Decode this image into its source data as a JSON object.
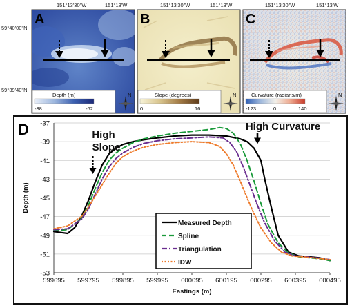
{
  "maps": {
    "top_coords": [
      "151°13'30\"W",
      "151°13'W"
    ],
    "left_coords": [
      "59°40'00\"N",
      "59°39'40\"N"
    ],
    "north_label": "N",
    "panels": [
      {
        "letter": "A",
        "legend_title": "Depth (m)",
        "ticks": [
          "-38",
          "-62"
        ],
        "ramp": [
          "#e8eef8",
          "#9db7de",
          "#3b5fb0",
          "#1c2a78"
        ]
      },
      {
        "letter": "B",
        "legend_title": "Slope (degrees)",
        "ticks": [
          "0",
          "16"
        ],
        "ramp": [
          "#f7f3d8",
          "#d8c48d",
          "#a27a45",
          "#5e3b1a"
        ]
      },
      {
        "letter": "C",
        "legend_title": "Curvature (radians/m)",
        "ticks": [
          "-123",
          "0",
          "140"
        ],
        "ramp": [
          "#2f5fb4",
          "#9fb8dc",
          "#f3f1ea",
          "#eea98f",
          "#c83a2a"
        ]
      }
    ]
  },
  "chart_data": {
    "type": "line",
    "panel_letter": "D",
    "xlabel": "Eastings (m)",
    "ylabel": "Depth (m)",
    "xlim": [
      599695,
      600495
    ],
    "ylim": [
      -53,
      -37
    ],
    "xticks": [
      599695,
      599795,
      599895,
      599995,
      600095,
      600195,
      600295,
      600395,
      600495
    ],
    "yticks": [
      -37,
      -39,
      -41,
      -43,
      -45,
      -47,
      -49,
      -51,
      -53
    ],
    "grid": true,
    "legend_position": "bottom-center",
    "annotations": [
      {
        "text": "High Slope",
        "lines": [
          "High",
          "Slope"
        ],
        "x": 599808,
        "y": -42.6
      },
      {
        "text": "High Curvature",
        "lines": [
          "High Curvature"
        ],
        "x": 600285,
        "y": -39.4
      }
    ],
    "series": [
      {
        "name": "Measured Depth",
        "color": "#000000",
        "dash": "solid",
        "x": [
          599695,
          599715,
          599735,
          599755,
          599775,
          599795,
          599815,
          599835,
          599855,
          599875,
          599895,
          599925,
          599955,
          599995,
          600045,
          600095,
          600145,
          600195,
          600235,
          600255,
          600275,
          600295,
          600305,
          600325,
          600345,
          600375,
          600405,
          600435,
          600465,
          600495
        ],
        "y": [
          -48.6,
          -48.7,
          -48.8,
          -48.2,
          -47.0,
          -45.3,
          -43.3,
          -41.5,
          -40.3,
          -39.7,
          -39.3,
          -39.0,
          -38.8,
          -38.6,
          -38.4,
          -38.3,
          -38.3,
          -38.4,
          -38.7,
          -39.0,
          -39.7,
          -41.0,
          -42.8,
          -46.0,
          -49.0,
          -50.8,
          -51.2,
          -51.3,
          -51.4,
          -51.7
        ]
      },
      {
        "name": "Spline",
        "color": "#1a9a3a",
        "dash": "dashed",
        "x": [
          599695,
          599735,
          599775,
          599795,
          599815,
          599835,
          599855,
          599875,
          599895,
          599925,
          599955,
          599995,
          600045,
          600095,
          600145,
          600175,
          600195,
          600215,
          600235,
          600255,
          600275,
          600295,
          600315,
          600345,
          600375,
          600405,
          600435,
          600465,
          600495
        ],
        "y": [
          -48.5,
          -48.4,
          -47.2,
          -45.8,
          -44.0,
          -42.3,
          -41.0,
          -40.2,
          -39.7,
          -39.1,
          -38.7,
          -38.4,
          -38.1,
          -37.9,
          -37.7,
          -37.5,
          -37.6,
          -38.1,
          -39.2,
          -41.0,
          -43.2,
          -45.6,
          -47.8,
          -49.8,
          -50.9,
          -51.3,
          -51.4,
          -51.5,
          -51.7
        ]
      },
      {
        "name": "Triangulation",
        "color": "#6a2d8f",
        "dash": "dashdot",
        "x": [
          599695,
          599735,
          599775,
          599795,
          599815,
          599835,
          599855,
          599875,
          599895,
          599925,
          599955,
          599995,
          600045,
          600095,
          600145,
          600185,
          600205,
          600225,
          600245,
          600265,
          600285,
          600305,
          600335,
          600365,
          600395,
          600425,
          600455,
          600495
        ],
        "y": [
          -48.4,
          -48.3,
          -47.3,
          -46.2,
          -44.6,
          -43.0,
          -41.7,
          -40.8,
          -40.2,
          -39.6,
          -39.2,
          -38.9,
          -38.7,
          -38.6,
          -38.5,
          -38.6,
          -39.1,
          -40.1,
          -41.8,
          -43.8,
          -45.8,
          -47.6,
          -49.6,
          -50.8,
          -51.2,
          -51.3,
          -51.4,
          -51.6
        ]
      },
      {
        "name": "IDW",
        "color": "#ee7a2a",
        "dash": "dotted",
        "x": [
          599695,
          599735,
          599775,
          599795,
          599815,
          599835,
          599855,
          599875,
          599895,
          599925,
          599955,
          599995,
          600045,
          600095,
          600145,
          600175,
          600195,
          600215,
          600235,
          600255,
          600275,
          600295,
          600325,
          600355,
          600385,
          600415,
          600445,
          600495
        ],
        "y": [
          -48.3,
          -48.0,
          -47.0,
          -46.0,
          -44.8,
          -43.6,
          -42.4,
          -41.3,
          -40.6,
          -40.0,
          -39.6,
          -39.3,
          -39.1,
          -39.0,
          -39.1,
          -39.5,
          -40.3,
          -41.5,
          -43.2,
          -45.0,
          -46.7,
          -48.2,
          -49.8,
          -50.8,
          -51.2,
          -51.3,
          -51.4,
          -51.6
        ]
      }
    ]
  }
}
